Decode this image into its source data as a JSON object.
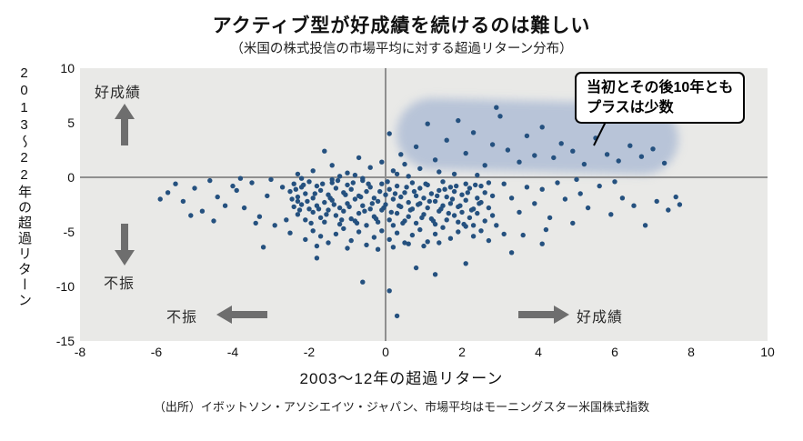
{
  "chart_data": {
    "type": "scatter",
    "title": "アクティブ型が好成績を続けるのは難しい",
    "subtitle": "（米国の株式投信の市場平均に対する超過リターン分布）",
    "xlabel": "2003〜12年の超過リターン",
    "ylabel": "2013〜22年の超過リターン",
    "xlim": [
      -8,
      10
    ],
    "ylim": [
      -15,
      10
    ],
    "xticks": [
      -8,
      -6,
      -4,
      -2,
      0,
      2,
      4,
      6,
      8,
      10
    ],
    "yticks": [
      10,
      5,
      0,
      -5,
      -10,
      -15
    ],
    "grid": false,
    "point_color": "#25517f",
    "plot_bg": "#e9e9e7",
    "highlight_color": "rgba(125,150,198,0.45)",
    "arrow_color": "#6e6e6e",
    "annotations": {
      "top_left_label": "好成績",
      "mid_left_label": "不振",
      "bottom_left_label": "不振",
      "bottom_right_label": "好成績",
      "callout_line1": "当初とその後10年とも",
      "callout_line2": "プラスは少数"
    },
    "source": "（出所）イボットソン・アソシエイツ・ジャパン、市場平均はモーニングスター米国株式指数",
    "points": [
      [
        -2.5,
        -1.3
      ],
      [
        -2.4,
        -2.7
      ],
      [
        -2.4,
        -0.6
      ],
      [
        -2.3,
        -3.4
      ],
      [
        -2.3,
        -1.8
      ],
      [
        -2.2,
        -2.5
      ],
      [
        -2.2,
        -0.9
      ],
      [
        -2.1,
        -3.9
      ],
      [
        -2.1,
        -1.5
      ],
      [
        -2.0,
        -2.9
      ],
      [
        -2.0,
        -0.4
      ],
      [
        -1.9,
        -3.2
      ],
      [
        -1.9,
        -1.9
      ],
      [
        -1.8,
        -2.6
      ],
      [
        -1.8,
        -0.8
      ],
      [
        -1.7,
        -3.7
      ],
      [
        -1.7,
        -1.2
      ],
      [
        -1.6,
        -2.3
      ],
      [
        -1.6,
        -4.1
      ],
      [
        -1.5,
        -1.6
      ],
      [
        -1.5,
        -3.0
      ],
      [
        -1.4,
        -0.5
      ],
      [
        -1.4,
        -2.1
      ],
      [
        -1.3,
        -3.5
      ],
      [
        -1.3,
        -1.0
      ],
      [
        -1.2,
        -2.8
      ],
      [
        -1.2,
        -4.3
      ],
      [
        -1.1,
        -1.4
      ],
      [
        -1.1,
        -3.1
      ],
      [
        -1.0,
        -0.7
      ],
      [
        -1.0,
        -2.4
      ],
      [
        -0.9,
        -3.8
      ],
      [
        -0.9,
        -1.1
      ],
      [
        -0.8,
        -2.0
      ],
      [
        -0.8,
        -4.0
      ],
      [
        -0.7,
        -1.7
      ],
      [
        -0.7,
        -3.3
      ],
      [
        -0.6,
        -0.3
      ],
      [
        -0.6,
        -2.6
      ],
      [
        -0.5,
        -4.4
      ],
      [
        -0.5,
        -1.3
      ],
      [
        -0.4,
        -2.9
      ],
      [
        -0.4,
        -0.9
      ],
      [
        -0.3,
        -3.6
      ],
      [
        -0.3,
        -1.9
      ],
      [
        -0.2,
        -2.2
      ],
      [
        -0.2,
        -4.1
      ],
      [
        -0.1,
        -0.6
      ],
      [
        -0.1,
        -3.0
      ],
      [
        0.0,
        -1.6
      ],
      [
        0.0,
        -2.5
      ],
      [
        0.1,
        -3.9
      ],
      [
        0.1,
        -1.1
      ],
      [
        0.2,
        -2.0
      ],
      [
        0.2,
        -4.4
      ],
      [
        0.3,
        -0.8
      ],
      [
        0.3,
        -3.3
      ],
      [
        0.4,
        -1.8
      ],
      [
        0.4,
        -2.7
      ],
      [
        0.5,
        -4.0
      ],
      [
        0.5,
        -1.4
      ],
      [
        0.6,
        -2.3
      ],
      [
        0.6,
        -3.6
      ],
      [
        0.7,
        -0.5
      ],
      [
        0.7,
        -2.9
      ],
      [
        0.8,
        -1.7
      ],
      [
        0.8,
        -4.2
      ],
      [
        0.9,
        -2.4
      ],
      [
        0.9,
        -1.0
      ],
      [
        1.0,
        -3.4
      ],
      [
        1.0,
        -1.9
      ],
      [
        1.1,
        -2.8
      ],
      [
        1.1,
        -0.7
      ],
      [
        1.2,
        -3.8
      ],
      [
        1.2,
        -1.5
      ],
      [
        1.3,
        -2.2
      ],
      [
        1.3,
        -4.3
      ],
      [
        1.4,
        -1.2
      ],
      [
        1.4,
        -3.1
      ],
      [
        1.5,
        -0.4
      ],
      [
        1.5,
        -2.6
      ],
      [
        1.6,
        -3.9
      ],
      [
        1.6,
        -1.8
      ],
      [
        1.7,
        -2.4
      ],
      [
        1.7,
        -0.9
      ],
      [
        1.8,
        -3.5
      ],
      [
        1.8,
        -1.3
      ],
      [
        1.9,
        -2.7
      ],
      [
        1.9,
        -4.1
      ],
      [
        2.0,
        -1.6
      ],
      [
        2.0,
        -3.2
      ],
      [
        2.1,
        -0.6
      ],
      [
        2.1,
        -2.1
      ],
      [
        2.2,
        -3.7
      ],
      [
        2.2,
        -1.0
      ],
      [
        2.3,
        -2.9
      ],
      [
        2.3,
        -4.4
      ],
      [
        2.4,
        -1.9
      ],
      [
        2.4,
        -3.3
      ],
      [
        2.5,
        -0.8
      ],
      [
        2.5,
        -2.3
      ],
      [
        2.6,
        -4.0
      ],
      [
        2.6,
        -1.4
      ],
      [
        2.7,
        -2.8
      ],
      [
        2.7,
        -0.5
      ],
      [
        2.8,
        -3.5
      ],
      [
        2.8,
        -1.7
      ],
      [
        -2.45,
        -2.0
      ],
      [
        -2.35,
        -1.1
      ],
      [
        -2.25,
        -3.0
      ],
      [
        -2.15,
        -0.7
      ],
      [
        -2.05,
        -2.2
      ],
      [
        -1.95,
        -4.2
      ],
      [
        -1.85,
        -1.5
      ],
      [
        -1.75,
        -2.9
      ],
      [
        -1.65,
        -0.6
      ],
      [
        -1.55,
        -3.4
      ],
      [
        -1.45,
        -1.9
      ],
      [
        -1.35,
        -2.5
      ],
      [
        -1.25,
        -0.3
      ],
      [
        -1.15,
        -3.9
      ],
      [
        -1.05,
        -1.6
      ],
      [
        -0.95,
        -2.7
      ],
      [
        -0.85,
        -0.5
      ],
      [
        -0.75,
        -4.2
      ],
      [
        -0.65,
        -1.8
      ],
      [
        -0.55,
        -3.1
      ],
      [
        -0.45,
        -0.6
      ],
      [
        -0.35,
        -2.4
      ],
      [
        -0.25,
        -3.8
      ],
      [
        -0.15,
        -1.3
      ],
      [
        -0.05,
        -2.8
      ],
      [
        0.05,
        -0.4
      ],
      [
        0.15,
        -3.2
      ],
      [
        0.25,
        -1.5
      ],
      [
        0.35,
        -2.6
      ],
      [
        0.45,
        -4.2
      ],
      [
        0.55,
        -0.9
      ],
      [
        0.65,
        -3.0
      ],
      [
        0.75,
        -1.3
      ],
      [
        0.85,
        -2.5
      ],
      [
        0.95,
        -3.7
      ],
      [
        1.05,
        -0.6
      ],
      [
        1.15,
        -2.2
      ],
      [
        1.25,
        -4.0
      ],
      [
        1.35,
        -1.7
      ],
      [
        1.45,
        -2.9
      ],
      [
        1.55,
        -1.1
      ],
      [
        1.65,
        -3.3
      ],
      [
        1.75,
        -2.0
      ],
      [
        1.85,
        -0.8
      ],
      [
        1.95,
        -2.6
      ],
      [
        2.05,
        -4.3
      ],
      [
        2.15,
        -1.4
      ],
      [
        2.25,
        -3.0
      ],
      [
        2.35,
        -0.7
      ],
      [
        2.45,
        -2.4
      ],
      [
        -3.9,
        -1.2
      ],
      [
        -3.7,
        -2.8
      ],
      [
        -3.5,
        -0.5
      ],
      [
        -3.3,
        -3.6
      ],
      [
        -3.1,
        -1.7
      ],
      [
        -2.9,
        -4.4
      ],
      [
        -2.7,
        -0.9
      ],
      [
        -2.5,
        -5.1
      ],
      [
        -2.3,
        -2.2
      ],
      [
        -2.1,
        -5.7
      ],
      [
        -1.9,
        -4.9
      ],
      [
        -1.7,
        -5.4
      ],
      [
        -1.5,
        -6.0
      ],
      [
        -1.3,
        -5.2
      ],
      [
        -1.1,
        -4.7
      ],
      [
        -0.9,
        -5.8
      ],
      [
        -0.7,
        -5.0
      ],
      [
        -0.5,
        -6.2
      ],
      [
        -0.3,
        -5.5
      ],
      [
        -0.1,
        -4.9
      ],
      [
        0.1,
        -5.7
      ],
      [
        0.3,
        -5.1
      ],
      [
        0.5,
        -6.0
      ],
      [
        0.7,
        -5.3
      ],
      [
        0.9,
        -4.8
      ],
      [
        1.1,
        -5.9
      ],
      [
        1.3,
        -5.2
      ],
      [
        1.5,
        -4.6
      ],
      [
        1.7,
        -5.6
      ],
      [
        1.9,
        -5.0
      ],
      [
        2.1,
        -4.5
      ],
      [
        2.3,
        -5.4
      ],
      [
        2.5,
        -4.9
      ],
      [
        2.7,
        -5.8
      ],
      [
        2.9,
        -4.4
      ],
      [
        3.1,
        -5.2
      ],
      [
        -3.8,
        -0.1
      ],
      [
        -3.4,
        -4.2
      ],
      [
        -3.0,
        -0.2
      ],
      [
        -2.6,
        -3.9
      ],
      [
        -2.2,
        -0.1
      ],
      [
        -1.8,
        -6.3
      ],
      [
        -1.4,
        -0.2
      ],
      [
        -1.0,
        -6.5
      ],
      [
        -0.6,
        -0.1
      ],
      [
        -0.2,
        -6.6
      ],
      [
        0.2,
        -6.4
      ],
      [
        0.6,
        -6.1
      ],
      [
        1.0,
        -6.3
      ],
      [
        1.4,
        -6.0
      ],
      [
        -0.8,
        0.2
      ],
      [
        0.6,
        0.1
      ],
      [
        1.8,
        0.3
      ],
      [
        -1.2,
        0.1
      ],
      [
        2.4,
        0.2
      ],
      [
        0.3,
        0.3
      ],
      [
        -1.9,
        0.6
      ],
      [
        -1.4,
        1.1
      ],
      [
        -1.0,
        0.4
      ],
      [
        -0.7,
        1.8
      ],
      [
        -0.4,
        0.9
      ],
      [
        -2.3,
        0.3
      ],
      [
        -0.1,
        1.4
      ],
      [
        -1.6,
        2.4
      ],
      [
        -5.7,
        -1.4
      ],
      [
        -5.5,
        -0.6
      ],
      [
        -5.3,
        -2.2
      ],
      [
        -5.0,
        -1.0
      ],
      [
        -4.8,
        -3.1
      ],
      [
        -4.6,
        -0.3
      ],
      [
        -4.4,
        -1.8
      ],
      [
        -4.2,
        -2.6
      ],
      [
        -4.0,
        -0.8
      ],
      [
        -4.5,
        -4.0
      ],
      [
        -5.1,
        -3.5
      ],
      [
        -5.9,
        -2.0
      ],
      [
        3.1,
        -0.6
      ],
      [
        3.3,
        -1.9
      ],
      [
        3.5,
        -3.2
      ],
      [
        3.7,
        -0.9
      ],
      [
        3.9,
        -2.4
      ],
      [
        4.1,
        -1.1
      ],
      [
        4.3,
        -3.7
      ],
      [
        4.5,
        -0.5
      ],
      [
        4.7,
        -2.0
      ],
      [
        4.9,
        -4.2
      ],
      [
        5.1,
        -1.5
      ],
      [
        5.3,
        -2.8
      ],
      [
        5.6,
        -0.8
      ],
      [
        5.9,
        -3.4
      ],
      [
        6.2,
        -1.9
      ],
      [
        6.5,
        -2.6
      ],
      [
        6.8,
        -4.4
      ],
      [
        7.1,
        -2.2
      ],
      [
        7.4,
        -3.0
      ],
      [
        7.7,
        -2.5
      ],
      [
        5.0,
        -0.2
      ],
      [
        4.2,
        -4.8
      ],
      [
        3.6,
        -5.3
      ],
      [
        6.0,
        -0.4
      ],
      [
        7.6,
        -1.8
      ],
      [
        0.5,
        1.2
      ],
      [
        0.8,
        2.8
      ],
      [
        1.1,
        4.9
      ],
      [
        1.3,
        1.6
      ],
      [
        1.6,
        3.4
      ],
      [
        1.9,
        5.2
      ],
      [
        2.1,
        2.2
      ],
      [
        2.3,
        4.1
      ],
      [
        2.6,
        1.1
      ],
      [
        2.8,
        3.0
      ],
      [
        3.0,
        5.6
      ],
      [
        3.2,
        2.5
      ],
      [
        3.5,
        1.4
      ],
      [
        3.7,
        3.8
      ],
      [
        3.9,
        2.0
      ],
      [
        4.1,
        4.6
      ],
      [
        4.4,
        1.8
      ],
      [
        4.6,
        3.1
      ],
      [
        4.9,
        2.4
      ],
      [
        5.2,
        1.2
      ],
      [
        5.5,
        3.6
      ],
      [
        5.8,
        2.1
      ],
      [
        6.1,
        1.5
      ],
      [
        6.4,
        2.9
      ],
      [
        6.7,
        1.9
      ],
      [
        7.0,
        2.6
      ],
      [
        7.3,
        1.3
      ],
      [
        2.9,
        6.4
      ],
      [
        0.2,
        0.6
      ],
      [
        0.9,
        0.8
      ],
      [
        1.4,
        0.5
      ],
      [
        0.4,
        2.1
      ],
      [
        0.1,
        4.0
      ],
      [
        0.1,
        -10.4
      ],
      [
        0.3,
        -12.7
      ],
      [
        -0.6,
        -9.6
      ],
      [
        1.3,
        -8.9
      ],
      [
        2.1,
        -7.9
      ],
      [
        -1.8,
        -7.4
      ],
      [
        3.3,
        -6.9
      ],
      [
        -3.2,
        -6.4
      ],
      [
        0.8,
        -8.3
      ],
      [
        4.1,
        -6.1
      ]
    ]
  }
}
